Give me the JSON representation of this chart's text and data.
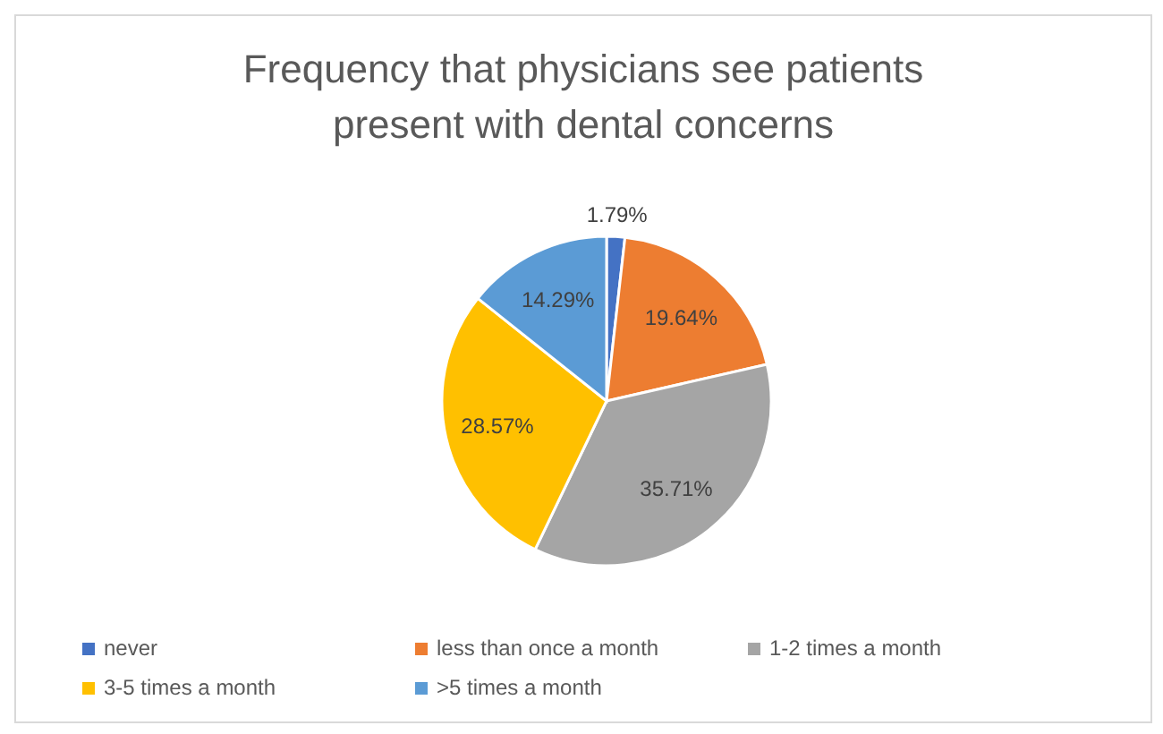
{
  "chart_data": {
    "type": "pie",
    "title": "Frequency that physicians see patients present with dental concerns",
    "categories": [
      "never",
      "less than once a month",
      "1-2 times a month",
      "3-5 times a month",
      ">5 times a month"
    ],
    "values": [
      1.79,
      19.64,
      35.71,
      28.57,
      14.29
    ],
    "colors": [
      "#4472c4",
      "#ed7d31",
      "#a5a5a5",
      "#ffc000",
      "#5b9bd5"
    ],
    "value_labels": [
      "1.79%",
      "19.64%",
      "35.71%",
      "28.57%",
      "14.29%"
    ],
    "legend": "bottom"
  }
}
